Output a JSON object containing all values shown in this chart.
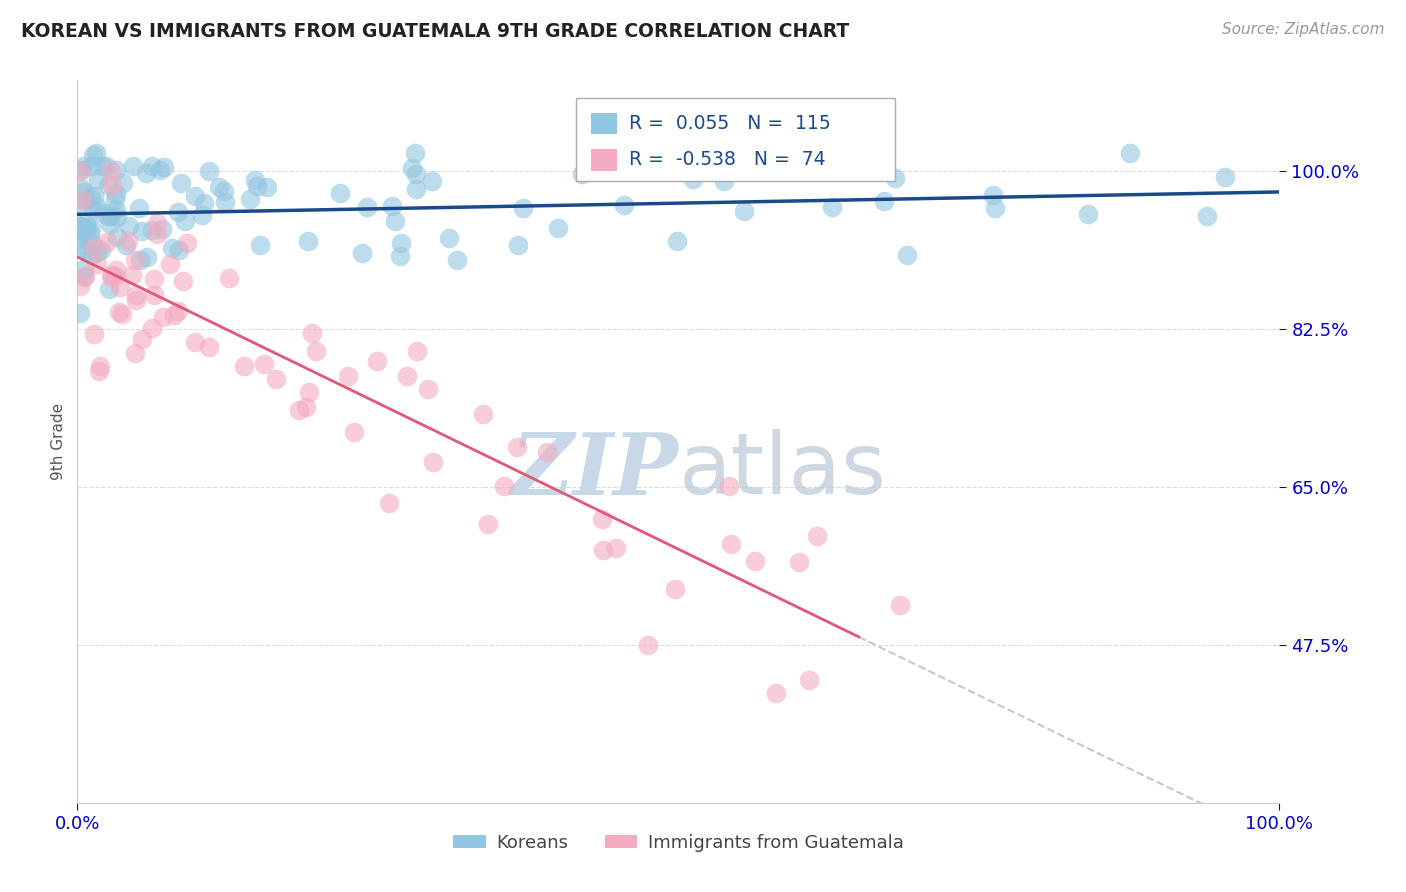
{
  "title": "KOREAN VS IMMIGRANTS FROM GUATEMALA 9TH GRADE CORRELATION CHART",
  "source": "Source: ZipAtlas.com",
  "ylabel": "9th Grade",
  "r_korean": 0.055,
  "n_korean": 115,
  "r_guatemala": -0.538,
  "n_guatemala": 74,
  "blue_color": "#92C5E0",
  "pink_color": "#F4AABF",
  "blue_line_color": "#1A4A8A",
  "pink_line_color": "#E05878",
  "gray_dash_color": "#C8C8C8",
  "background_color": "#FFFFFF",
  "watermark_color": "#C8D8E8",
  "title_color": "#222222",
  "source_color": "#999999",
  "axis_label_color": "#555555",
  "tick_color": "#0000CC",
  "grid_color": "#DDDDDD",
  "legend_text_color": "#1A4A8A",
  "bottom_legend_text_color": "#444444"
}
